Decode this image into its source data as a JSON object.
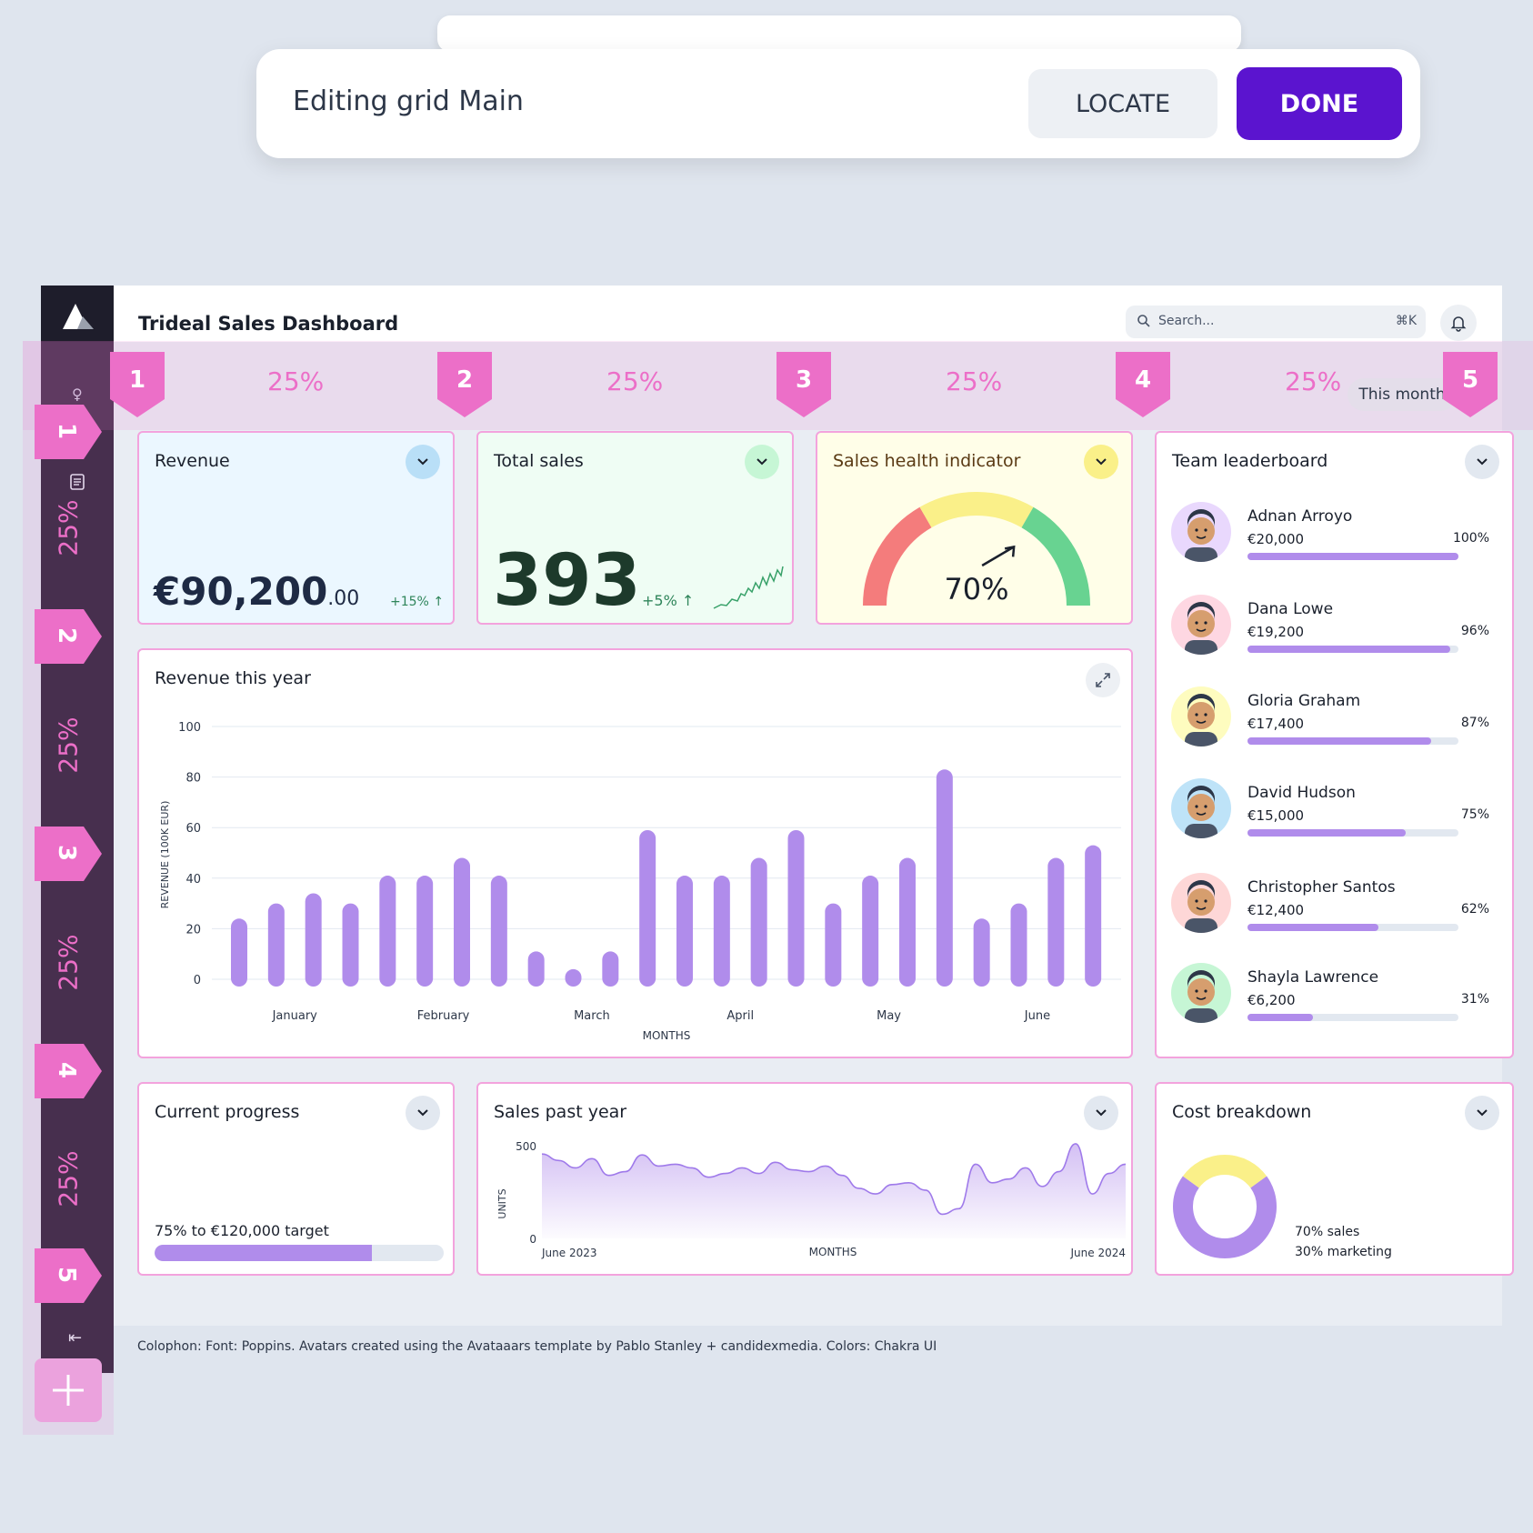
{
  "edit_bar": {
    "title": "Editing grid Main",
    "locate_label": "LOCATE",
    "done_label": "DONE"
  },
  "header": {
    "title": "Trideal Sales Dashboard",
    "search_placeholder": "Search...",
    "search_shortcut": "⌘K"
  },
  "grid_editor": {
    "columns": [
      {
        "marker": "1",
        "width": "25%"
      },
      {
        "marker": "2",
        "width": "25%"
      },
      {
        "marker": "3",
        "width": "25%"
      },
      {
        "marker": "4",
        "width": "25%"
      },
      {
        "marker": "5"
      }
    ],
    "rows": [
      {
        "marker": "1",
        "height": "25%"
      },
      {
        "marker": "2",
        "height": "25%"
      },
      {
        "marker": "3",
        "height": "25%"
      },
      {
        "marker": "4",
        "height": "25%"
      },
      {
        "marker": "5"
      }
    ],
    "add_label": "+"
  },
  "period_filter": "This month",
  "revenue": {
    "title": "Revenue",
    "value_main": "€90,200",
    "value_cents": ".00",
    "change": "+15%",
    "color": "#ebf7ff"
  },
  "total_sales": {
    "title": "Total sales",
    "value": "393",
    "change": "+5%",
    "color": "#effdf4"
  },
  "health": {
    "title": "Sales health indicator",
    "value": "70%",
    "level": 0.7
  },
  "leaderboard": {
    "title": "Team leaderboard",
    "people": [
      {
        "name": "Adnan Arroyo",
        "amount": "€20,000",
        "pct": "100%",
        "fraction": 1.0,
        "bg": "#e9d8fd"
      },
      {
        "name": "Dana Lowe",
        "amount": "€19,200",
        "pct": "96%",
        "fraction": 0.96,
        "bg": "#fed7e2"
      },
      {
        "name": "Gloria Graham",
        "amount": "€17,400",
        "pct": "87%",
        "fraction": 0.87,
        "bg": "#fefcbf"
      },
      {
        "name": "David Hudson",
        "amount": "€15,000",
        "pct": "75%",
        "fraction": 0.75,
        "bg": "#bee3f8"
      },
      {
        "name": "Christopher Santos",
        "amount": "€12,400",
        "pct": "62%",
        "fraction": 0.62,
        "bg": "#fed7d7"
      },
      {
        "name": "Shayla Lawrence",
        "amount": "€6,200",
        "pct": "31%",
        "fraction": 0.31,
        "bg": "#c6f6d5"
      }
    ]
  },
  "revenue_chart": {
    "title": "Revenue this year",
    "chart_data": {
      "type": "bar",
      "ylabel": "REVENUE (100K EUR)",
      "xlabel": "MONTHS",
      "ylim": [
        0,
        100
      ],
      "yticks": [
        "0",
        "20",
        "40",
        "60",
        "80",
        "100"
      ],
      "month_labels": [
        "January",
        "February",
        "March",
        "April",
        "May",
        "June"
      ],
      "values": [
        24,
        30,
        34,
        30,
        41,
        41,
        48,
        41,
        11,
        4,
        11,
        59,
        41,
        41,
        48,
        59,
        30,
        41,
        48,
        83,
        24,
        30,
        48,
        53
      ],
      "color": "#b08ceb"
    }
  },
  "progress": {
    "title": "Current progress",
    "text": "75% to €120,000 target",
    "fraction": 0.75
  },
  "sales_past_year": {
    "title": "Sales past year",
    "chart_data": {
      "type": "area",
      "ylabel": "UNITS",
      "xlabel": "MONTHS",
      "ylim": [
        0,
        500
      ],
      "yticks": [
        "0",
        "500"
      ],
      "x_start": "June 2023",
      "x_end": "June 2024",
      "values": [
        455,
        420,
        380,
        430,
        340,
        360,
        450,
        390,
        400,
        380,
        330,
        350,
        380,
        350,
        410,
        370,
        360,
        390,
        340,
        270,
        240,
        290,
        300,
        260,
        130,
        160,
        400,
        300,
        320,
        380,
        280,
        360,
        510,
        240,
        350,
        400
      ],
      "color": "#b08ceb"
    }
  },
  "cost_breakdown": {
    "title": "Cost breakdown",
    "chart_data": {
      "type": "pie",
      "labels": [
        "sales",
        "marketing"
      ],
      "values": [
        70,
        30
      ],
      "legend": [
        "70% sales",
        "30% marketing"
      ],
      "colors": [
        "#b08ceb",
        "#faf089"
      ]
    }
  },
  "colophon": "Colophon: Font: Poppins. Avatars created using the Avataaars template by Pablo Stanley + candidexmedia. Colors: Chakra UI"
}
